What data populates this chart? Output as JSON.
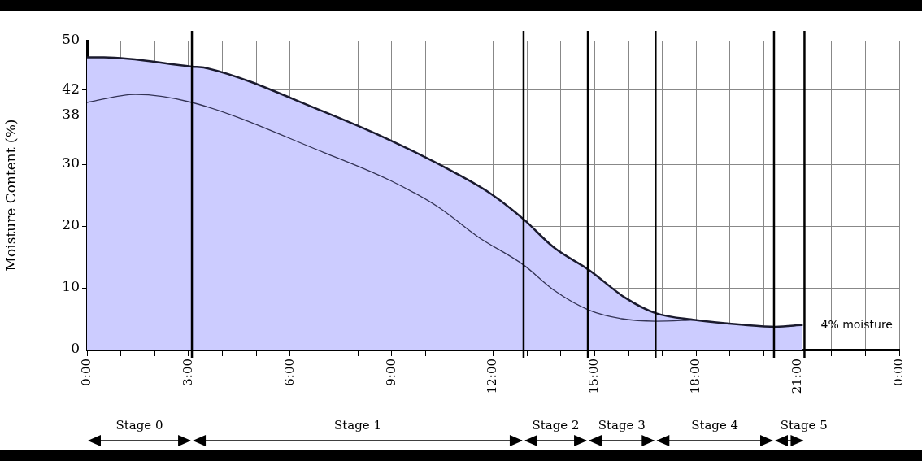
{
  "chart_data": {
    "type": "area",
    "ylabel": "Moisture Content (%)",
    "xlim": [
      0,
      24
    ],
    "xticks": [
      {
        "value": 0,
        "label": "0:00"
      },
      {
        "value": 1,
        "label": null
      },
      {
        "value": 2,
        "label": null
      },
      {
        "value": 3,
        "label": "3:00"
      },
      {
        "value": 4,
        "label": null
      },
      {
        "value": 5,
        "label": null
      },
      {
        "value": 6,
        "label": "6:00"
      },
      {
        "value": 7,
        "label": null
      },
      {
        "value": 8,
        "label": null
      },
      {
        "value": 9,
        "label": "9:00"
      },
      {
        "value": 10,
        "label": null
      },
      {
        "value": 11,
        "label": null
      },
      {
        "value": 12,
        "label": "12:00"
      },
      {
        "value": 13,
        "label": null
      },
      {
        "value": 14,
        "label": null
      },
      {
        "value": 15,
        "label": "15:00"
      },
      {
        "value": 16,
        "label": null
      },
      {
        "value": 17,
        "label": null
      },
      {
        "value": 18,
        "label": "18:00"
      },
      {
        "value": 19,
        "label": null
      },
      {
        "value": 20,
        "label": null
      },
      {
        "value": 21,
        "label": "21:00"
      },
      {
        "value": 22,
        "label": null
      },
      {
        "value": 23,
        "label": null
      },
      {
        "value": 24,
        "label": "0:00"
      }
    ],
    "ylim": [
      0,
      50
    ],
    "yticks": [
      0,
      10,
      20,
      30,
      38,
      42,
      50
    ],
    "grid": true,
    "legend": false,
    "series": [
      {
        "color": "#ccccff",
        "x": [
          0,
          0.5,
          3.1,
          3.5,
          7.0,
          8.95,
          10.98,
          11.94,
          12.9,
          13.8,
          14.83,
          15.9,
          16.8,
          17.96,
          19.4,
          20.35,
          21.15
        ],
        "values": [
          47.3,
          47.3,
          45.8,
          45.6,
          38.5,
          33.9,
          28.3,
          25.2,
          21.1,
          16.5,
          12.9,
          8.4,
          5.9,
          4.8,
          4.0,
          3.7,
          4.0
        ]
      },
      {
        "type": "line",
        "color": "#333355",
        "x": [
          0,
          1.43,
          3.1,
          7.0,
          8.95,
          10.4,
          11.54,
          12.9,
          13.8,
          14.83,
          15.8,
          16.8,
          17.96
        ],
        "values": [
          40.0,
          41.3,
          40.0,
          31.9,
          27.4,
          23.0,
          18.3,
          13.7,
          9.6,
          6.4,
          5.0,
          4.6,
          4.8
        ]
      }
    ],
    "ref_lines": [
      {
        "axis": "x",
        "value": 3.1,
        "color": "#000000"
      },
      {
        "axis": "x",
        "value": 12.9,
        "color": "#000000"
      },
      {
        "axis": "x",
        "value": 14.8,
        "color": "#000000"
      },
      {
        "axis": "x",
        "value": 16.8,
        "color": "#000000"
      },
      {
        "axis": "x",
        "value": 20.3,
        "color": "#000000"
      },
      {
        "axis": "x",
        "value": 21.2,
        "color": "#000000"
      }
    ],
    "annotations": [
      "Stage 0",
      "Stage 1",
      "Stage 2",
      "Stage 3",
      "Stage 4",
      "Stage 5",
      "4% moisture"
    ]
  }
}
